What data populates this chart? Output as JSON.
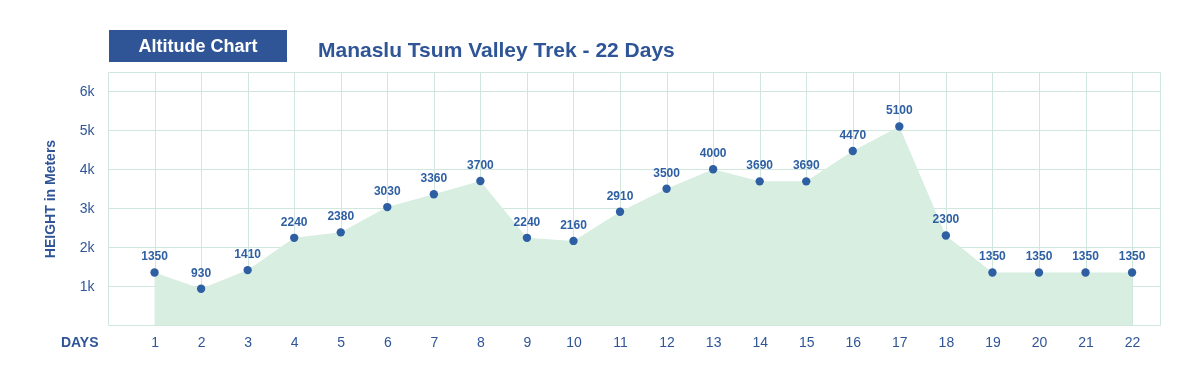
{
  "chart_data": {
    "type": "area",
    "title": "Manaslu Tsum Valley Trek - 22 Days",
    "annotations": [
      "Altitude Chart"
    ],
    "xlabel": "DAYS",
    "ylabel": "HEIGHT in Meters",
    "x": [
      1,
      2,
      3,
      4,
      5,
      6,
      7,
      8,
      9,
      10,
      11,
      12,
      13,
      14,
      15,
      16,
      17,
      18,
      19,
      20,
      21,
      22
    ],
    "series": [
      {
        "color": "#d7eee1",
        "values": [
          1350,
          930,
          1410,
          2240,
          2380,
          3030,
          3360,
          3700,
          2240,
          2160,
          2910,
          3500,
          4000,
          3690,
          3690,
          4470,
          5100,
          2300,
          1350,
          1350,
          1350,
          1350
        ]
      },
      {
        "type": "scatter",
        "color": "#2e5fa3",
        "values": [
          1350,
          930,
          1410,
          2240,
          2380,
          3030,
          3360,
          3700,
          2240,
          2160,
          2910,
          3500,
          4000,
          3690,
          3690,
          4470,
          5100,
          2300,
          1350,
          1350,
          1350,
          1350
        ],
        "value_labels": [
          "1350",
          "930",
          "1410",
          "2240",
          "2380",
          "3030",
          "3360",
          "3700",
          "2240",
          "2160",
          "2910",
          "3500",
          "4000",
          "3690",
          "3690",
          "4470",
          "5100",
          "2300",
          "1350",
          "1350",
          "1350",
          "1350"
        ]
      }
    ],
    "xlim": [
      0,
      22.6
    ],
    "xticks": [
      1,
      2,
      3,
      4,
      5,
      6,
      7,
      8,
      9,
      10,
      11,
      12,
      13,
      14,
      15,
      16,
      17,
      18,
      19,
      20,
      21,
      22
    ],
    "ylim": [
      0,
      6500
    ],
    "yticks": [
      {
        "value": 1000,
        "label": "1k"
      },
      {
        "value": 2000,
        "label": "2k"
      },
      {
        "value": 3000,
        "label": "3k"
      },
      {
        "value": 4000,
        "label": "4k"
      },
      {
        "value": 5000,
        "label": "5k"
      },
      {
        "value": 6000,
        "label": "6k"
      }
    ],
    "grid": true
  }
}
